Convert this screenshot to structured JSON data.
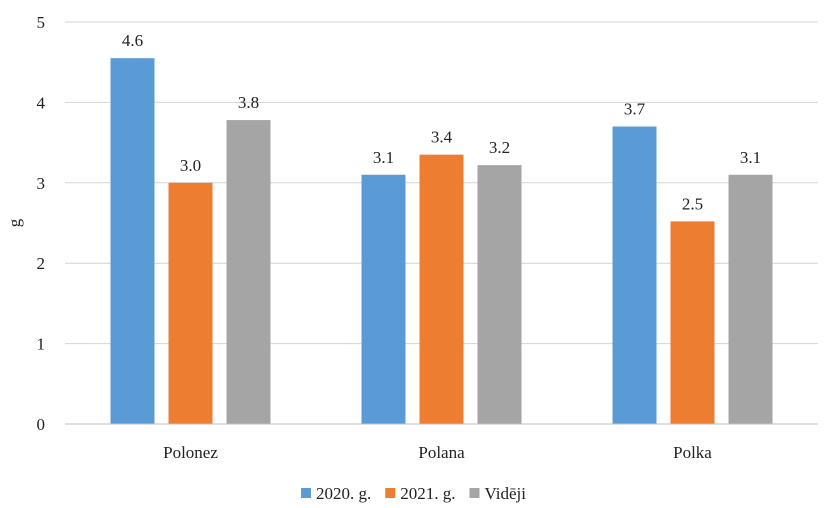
{
  "chart_data": {
    "type": "bar",
    "title": "",
    "xlabel": "",
    "ylabel": "g",
    "ylim": [
      0,
      5
    ],
    "yticks": [
      0,
      1,
      2,
      3,
      4,
      5
    ],
    "grid": true,
    "legend": "bottom",
    "categories": [
      "Polonez",
      "Polana",
      "Polka"
    ],
    "series": [
      {
        "name": "2020. g.",
        "color": "#5b9bd5",
        "values": [
          4.55,
          3.1,
          3.7
        ],
        "labels": [
          "4.6",
          "3.1",
          "3.7"
        ]
      },
      {
        "name": "2021. g.",
        "color": "#ed7d31",
        "values": [
          3.0,
          3.35,
          2.52
        ],
        "labels": [
          "3.0",
          "3.4",
          "2.5"
        ]
      },
      {
        "name": "Vidēji",
        "color": "#a5a5a5",
        "values": [
          3.78,
          3.22,
          3.1
        ],
        "labels": [
          "3.8",
          "3.2",
          "3.1"
        ]
      }
    ]
  }
}
